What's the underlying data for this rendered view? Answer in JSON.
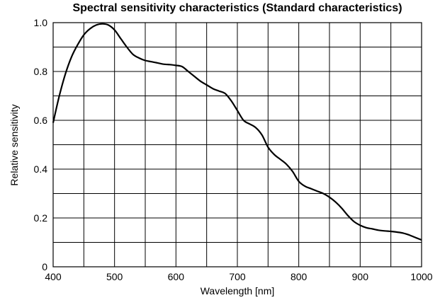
{
  "chart_data": {
    "type": "line",
    "title": "Spectral sensitivity characteristics (Standard characteristics)",
    "xlabel": "Wavelength [nm]",
    "ylabel": "Relative sensitivity",
    "xlim": [
      400,
      1000
    ],
    "ylim": [
      0,
      1.0
    ],
    "x_ticks": [
      "400",
      "500",
      "600",
      "700",
      "800",
      "900",
      "1000"
    ],
    "y_ticks": [
      "0",
      "0.2",
      "0.4",
      "0.6",
      "0.8",
      "1.0"
    ],
    "grid": true,
    "series": [
      {
        "color": "#000000",
        "x": [
          400,
          410,
          420,
          430,
          440,
          450,
          460,
          470,
          480,
          490,
          500,
          510,
          520,
          530,
          540,
          550,
          560,
          570,
          580,
          590,
          600,
          610,
          620,
          630,
          640,
          650,
          660,
          670,
          680,
          690,
          700,
          710,
          720,
          730,
          740,
          750,
          760,
          770,
          780,
          790,
          800,
          810,
          820,
          830,
          840,
          850,
          860,
          870,
          880,
          890,
          900,
          910,
          920,
          930,
          940,
          950,
          960,
          970,
          980,
          990,
          1000
        ],
        "y": [
          0.59,
          0.7,
          0.79,
          0.86,
          0.91,
          0.95,
          0.975,
          0.99,
          0.995,
          0.99,
          0.97,
          0.935,
          0.9,
          0.87,
          0.855,
          0.845,
          0.84,
          0.835,
          0.83,
          0.828,
          0.825,
          0.82,
          0.8,
          0.78,
          0.76,
          0.745,
          0.73,
          0.72,
          0.71,
          0.68,
          0.64,
          0.6,
          0.585,
          0.57,
          0.54,
          0.49,
          0.46,
          0.44,
          0.42,
          0.39,
          0.35,
          0.33,
          0.32,
          0.31,
          0.3,
          0.285,
          0.265,
          0.24,
          0.21,
          0.185,
          0.17,
          0.16,
          0.155,
          0.15,
          0.147,
          0.145,
          0.142,
          0.138,
          0.13,
          0.12,
          0.11
        ]
      }
    ]
  }
}
